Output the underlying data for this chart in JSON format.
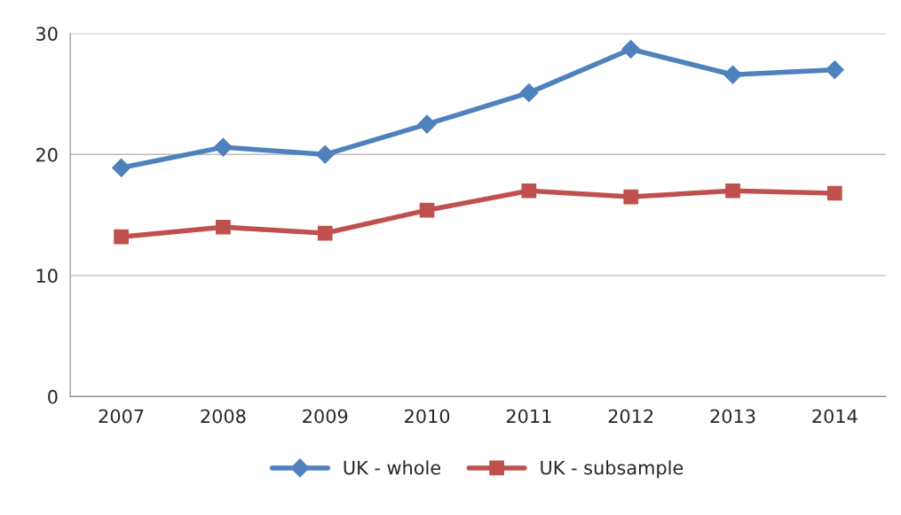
{
  "chart_data": {
    "type": "line",
    "categories": [
      "2007",
      "2008",
      "2009",
      "2010",
      "2011",
      "2012",
      "2013",
      "2014"
    ],
    "series": [
      {
        "name": "UK - whole",
        "color": "#4f81bd",
        "marker": "diamond",
        "values": [
          18.9,
          20.6,
          20.0,
          22.5,
          25.1,
          28.7,
          26.6,
          27.0
        ]
      },
      {
        "name": "UK - subsample",
        "color": "#c0504d",
        "marker": "square",
        "values": [
          13.2,
          14.0,
          13.5,
          15.4,
          17.0,
          16.5,
          17.0,
          16.8
        ]
      }
    ],
    "ylim": [
      0,
      30
    ],
    "yticks": [
      0,
      10,
      20,
      30
    ],
    "grid": "y",
    "legend": "bottom",
    "line_style": "solid"
  }
}
